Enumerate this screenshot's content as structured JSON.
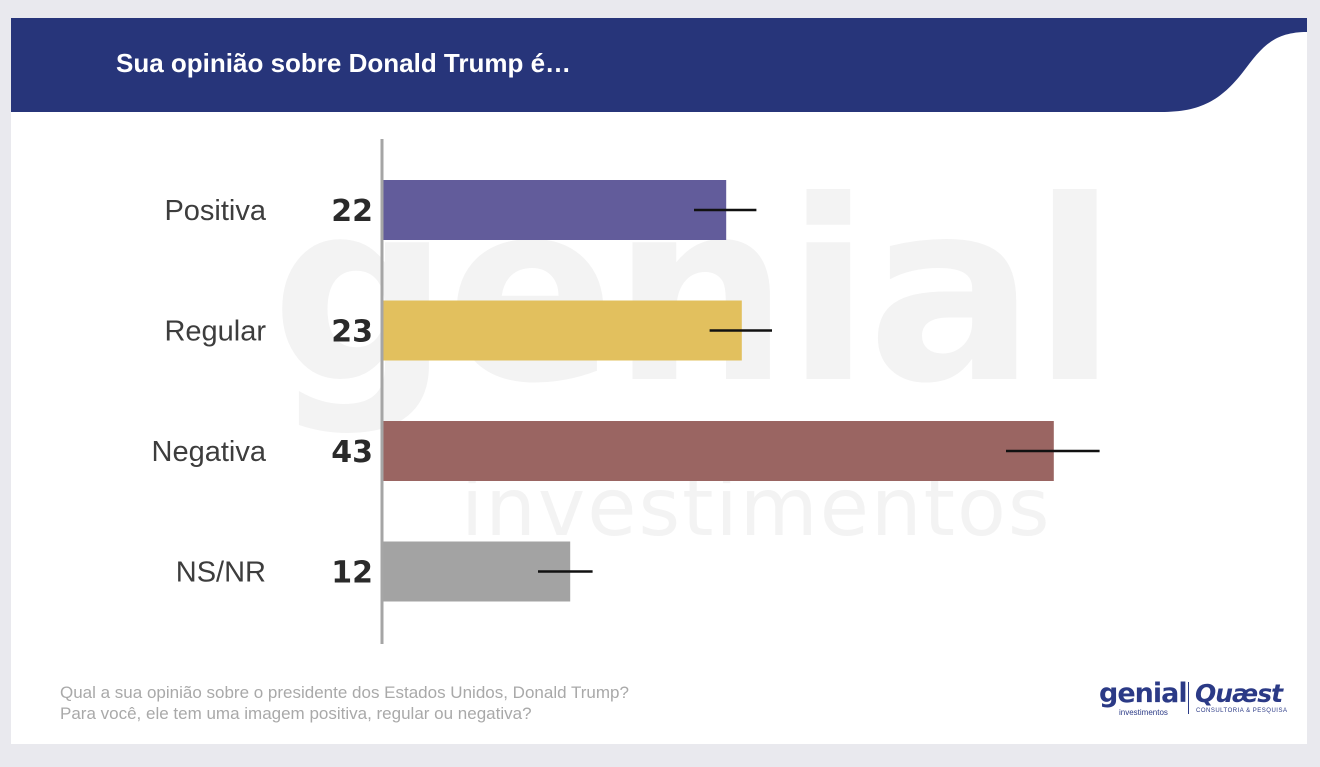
{
  "header": {
    "title": "Sua opinião sobre Donald Trump é…",
    "background_color": "#27357a"
  },
  "watermark": {
    "main": "genial",
    "sub": "investimentos"
  },
  "chart_data": {
    "type": "bar",
    "orientation": "horizontal",
    "categories": [
      "Positiva",
      "Regular",
      "Negativa",
      "NS/NR"
    ],
    "values": [
      22,
      23,
      43,
      12
    ],
    "error_bars": [
      {
        "low": 20,
        "high": 24
      },
      {
        "low": 21,
        "high": 25
      },
      {
        "low": 40,
        "high": 46
      },
      {
        "low": 10,
        "high": 13.5
      }
    ],
    "colors": [
      "#625c9b",
      "#e2c05e",
      "#9a6562",
      "#a3a3a3"
    ],
    "xlim": [
      0,
      50
    ],
    "grid": false,
    "legend": "none",
    "title": "",
    "xlabel": "",
    "ylabel": ""
  },
  "footnote": {
    "line1": "Qual a sua opinião sobre o presidente dos Estados Unidos, Donald Trump?",
    "line2": "Para você, ele tem uma imagem positiva, regular ou negativa?"
  },
  "logos": {
    "genial": "genial",
    "genial_sub": "investimentos",
    "quaest": "Quæst",
    "quaest_sub": "CONSULTORIA & PESQUISA",
    "color": "#2b3a86"
  }
}
